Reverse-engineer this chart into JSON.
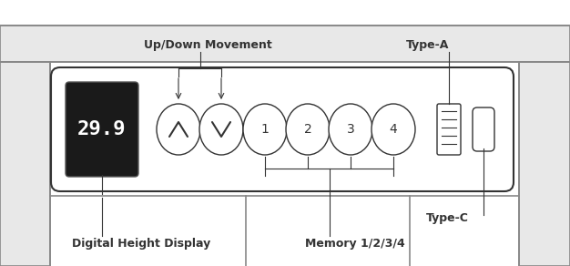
{
  "bg_color": "#ffffff",
  "line_color": "#333333",
  "frame_color": "#888888",
  "panel_fill": "#f0f0f0",
  "display_bg": "#1a1a1a",
  "display_text": "29.9",
  "display_text_color": "#ffffff",
  "labels": {
    "up_down": "Up/Down Movement",
    "type_a": "Type-A",
    "type_c": "Type-C",
    "digital": "Digital Height Display",
    "memory": "Memory 1/2/3/4"
  },
  "label_fontsize": 9,
  "label_fontweight": "bold",
  "figsize": [
    6.26,
    2.92
  ],
  "dpi": 100
}
